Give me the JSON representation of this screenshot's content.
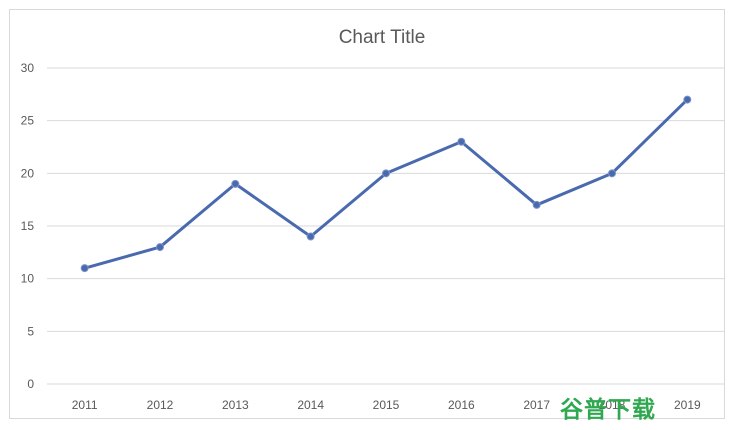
{
  "chart_data": {
    "type": "line",
    "title": "Chart Title",
    "categories": [
      "2011",
      "2012",
      "2013",
      "2014",
      "2015",
      "2016",
      "2017",
      "2018",
      "2019"
    ],
    "series": [
      {
        "values": [
          11,
          13,
          19,
          14,
          20,
          23,
          17,
          20,
          27
        ],
        "color": "#4a6aaf"
      }
    ],
    "xlabel": "",
    "ylabel": "",
    "ylim": [
      0,
      30
    ],
    "yticks": [
      0,
      5,
      10,
      15,
      20,
      25,
      30
    ],
    "grid": true,
    "legend": "none"
  },
  "watermark": {
    "text": "谷普下载",
    "color": "#2fa84f"
  }
}
